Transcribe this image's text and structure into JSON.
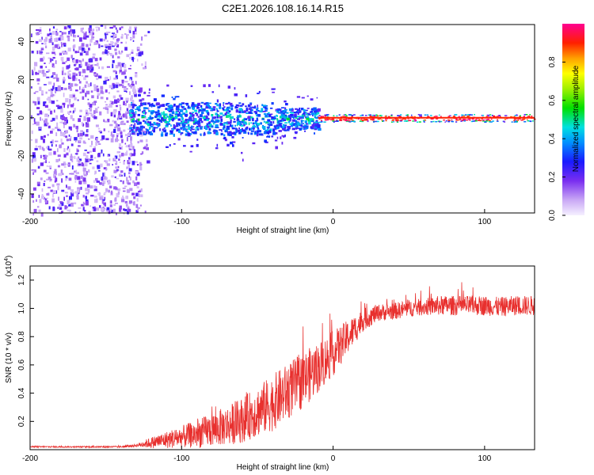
{
  "figure_title": "C2E1.2026.108.16.14.R15",
  "colors": {
    "snr_line": "#e8302e",
    "axis": "#000000",
    "background": "#ffffff"
  },
  "chart_data": [
    {
      "type": "heatmap",
      "title": "C2E1.2026.108.16.14.R15",
      "xlabel": "Height of straight line (km)",
      "ylabel": "Frequency (Hz)",
      "xlim": [
        -200,
        133
      ],
      "ylim": [
        -50,
        49
      ],
      "xticks": [
        -200,
        -100,
        0,
        100
      ],
      "yticks": [
        -40,
        -20,
        0,
        20,
        40
      ],
      "xtick_labels": [
        "-200",
        "-100",
        "0",
        "100"
      ],
      "ytick_labels": [
        "-40",
        "-20",
        "0",
        "20",
        "40"
      ],
      "colorbar": {
        "label": "Normalized spectral amplitude",
        "range": [
          0,
          1
        ],
        "ticks": [
          0.0,
          0.2,
          0.4,
          0.6,
          0.8
        ],
        "tick_labels": [
          "0.0",
          "0.2",
          "0.4",
          "0.6",
          "0.8"
        ]
      },
      "regions": [
        {
          "name": "broadband noise",
          "x_range": [
            -200,
            -120
          ],
          "freq_range": [
            -50,
            49
          ],
          "amplitude": [
            0.05,
            0.25
          ]
        },
        {
          "name": "scattered band",
          "x_range": [
            -135,
            -10
          ],
          "center_freq": 0,
          "freq_halfwidth": 7,
          "amplitude": [
            0.2,
            0.55
          ]
        },
        {
          "name": "narrow line",
          "x_range": [
            -10,
            133
          ],
          "center_freq": 0,
          "freq_halfwidth": 2,
          "amplitude": [
            0.85,
            1.0
          ]
        }
      ]
    },
    {
      "type": "line",
      "title": "",
      "xlabel": "Height of straight line (km)",
      "ylabel": "SNR (10 * v/v)",
      "y_multiplier": "(x10",
      "y_multiplier_exp": "4",
      "y_multiplier_close": ")",
      "xlim": [
        -200,
        133
      ],
      "ylim": [
        0,
        1.3
      ],
      "xticks": [
        -200,
        -100,
        0,
        100
      ],
      "yticks": [
        0.2,
        0.4,
        0.6,
        0.8,
        1.0,
        1.2
      ],
      "xtick_labels": [
        "-200",
        "-100",
        "0",
        "100"
      ],
      "ytick_labels": [
        "0.2",
        "0.4",
        "0.6",
        "0.8",
        "1.0",
        "1.2"
      ],
      "series": [
        {
          "name": "SNR",
          "x": [
            -200,
            -180,
            -160,
            -140,
            -130,
            -120,
            -110,
            -100,
            -90,
            -80,
            -70,
            -60,
            -50,
            -40,
            -30,
            -20,
            -10,
            0,
            10,
            20,
            30,
            40,
            50,
            60,
            70,
            80,
            90,
            100,
            110,
            120,
            133
          ],
          "values": [
            0.02,
            0.02,
            0.02,
            0.02,
            0.03,
            0.05,
            0.07,
            0.09,
            0.11,
            0.14,
            0.17,
            0.21,
            0.27,
            0.33,
            0.41,
            0.49,
            0.58,
            0.68,
            0.8,
            0.92,
            0.97,
            0.98,
            1.0,
            1.01,
            1.02,
            1.02,
            1.02,
            1.02,
            1.01,
            1.02,
            1.02
          ],
          "noise_amplitude": [
            0.005,
            0.005,
            0.005,
            0.006,
            0.01,
            0.04,
            0.06,
            0.08,
            0.1,
            0.12,
            0.14,
            0.16,
            0.18,
            0.2,
            0.2,
            0.2,
            0.18,
            0.16,
            0.12,
            0.08,
            0.06,
            0.06,
            0.06,
            0.06,
            0.07,
            0.07,
            0.07,
            0.07,
            0.07,
            0.07,
            0.07
          ]
        }
      ]
    }
  ]
}
